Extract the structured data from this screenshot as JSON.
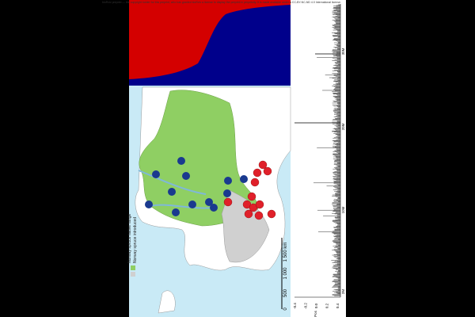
{
  "header": {
    "notice": "bioRxiv preprint — the copyright holder for this preprint, who has granted bioRxiv a license to display the preprint in perpetuity. It is made available under a CC-BY-NC-ND 4.0 International license."
  },
  "legend": {
    "native": "Norway spruce native range",
    "introduced": "Norway spruce introduced"
  },
  "scale": {
    "labels": [
      "0",
      "500",
      "1 000",
      "1 500 km"
    ]
  },
  "plot": {
    "x_ticks": [
      "-0.4",
      "-0.2",
      "0.0",
      "0.2",
      "0.4"
    ],
    "y_ticks": [
      "2M",
      "10M",
      "20M",
      "30M"
    ],
    "y_title": "Pos"
  }
}
